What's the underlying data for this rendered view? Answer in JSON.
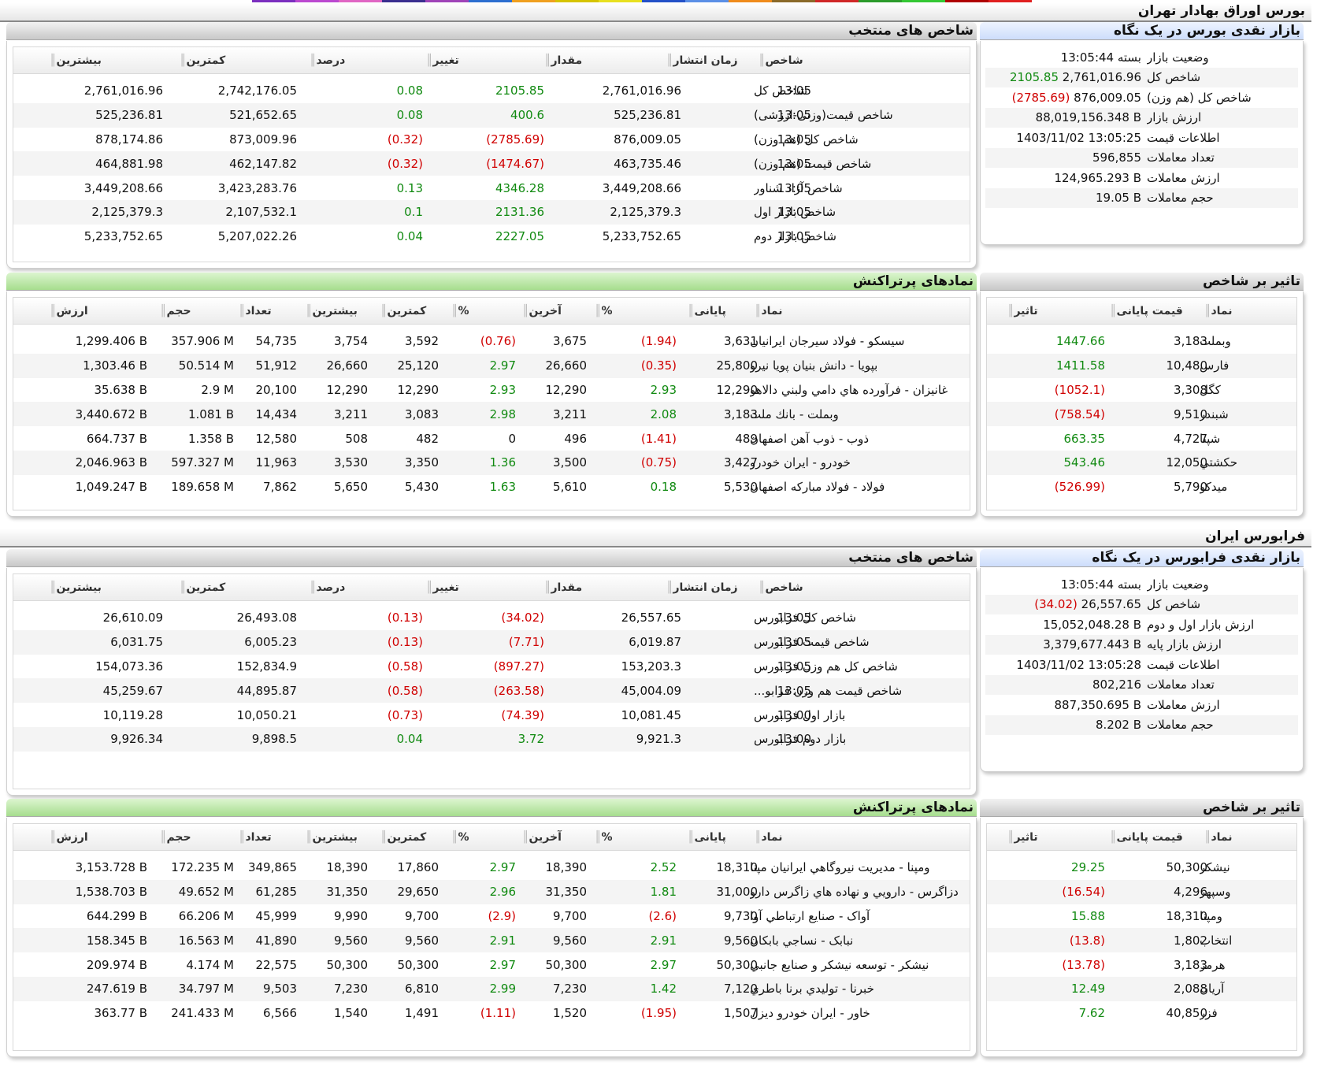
{
  "tehran": {
    "section_title": "بورس اوراق بهادار تهران",
    "glance": {
      "title": "بازار نقدی بورس در یک نگاه",
      "rows": [
        {
          "label": "وضعیت بازار",
          "value": "بسته 13:05:44",
          "change": ""
        },
        {
          "label": "شاخص کل",
          "value": "2,761,016.96",
          "change": "2105.85",
          "dir": "pos"
        },
        {
          "label": "شاخص کل (هم وزن)",
          "value": "876,009.05",
          "change": "(2785.69)",
          "dir": "neg"
        },
        {
          "label": "ارزش بازار",
          "value": "88,019,156.348 B",
          "change": ""
        },
        {
          "label": "اطلاعات قیمت",
          "value": "1403/11/02 13:05:25",
          "change": ""
        },
        {
          "label": "تعداد معاملات",
          "value": "596,855",
          "change": ""
        },
        {
          "label": "ارزش معاملات",
          "value": "124,965.293 B",
          "change": ""
        },
        {
          "label": "حجم معاملات",
          "value": "19.05 B",
          "change": ""
        }
      ]
    },
    "indices": {
      "title": "شاخص های منتخب",
      "headers": [
        "شاخص",
        "زمان انتشار",
        "مقدار",
        "تغییر",
        "درصد",
        "کمترین",
        "بیشترین"
      ],
      "rows": [
        {
          "cells": [
            "شاخص کل",
            "13:05",
            "2,761,016.96",
            "2105.85",
            "0.08",
            "2,742,176.05",
            "2,761,016.96"
          ],
          "dir": "pos"
        },
        {
          "cells": [
            "شاخص قیمت(وزنی-ارزشی)",
            "13:05",
            "525,236.81",
            "400.6",
            "0.08",
            "521,652.65",
            "525,236.81"
          ],
          "dir": "pos"
        },
        {
          "cells": [
            "شاخص کل (هم وزن)",
            "13:05",
            "876,009.05",
            "(2785.69)",
            "(0.32)",
            "873,009.96",
            "878,174.86"
          ],
          "dir": "neg"
        },
        {
          "cells": [
            "شاخص قیمت (هم وزن)",
            "13:05",
            "463,735.46",
            "(1474.67)",
            "(0.32)",
            "462,147.82",
            "464,881.98"
          ],
          "dir": "neg"
        },
        {
          "cells": [
            "شاخص آزاد شناور",
            "13:05",
            "3,449,208.66",
            "4346.28",
            "0.13",
            "3,423,283.76",
            "3,449,208.66"
          ],
          "dir": "pos"
        },
        {
          "cells": [
            "شاخص بازار اول",
            "13:05",
            "2,125,379.3",
            "2131.36",
            "0.1",
            "2,107,532.1",
            "2,125,379.3"
          ],
          "dir": "pos"
        },
        {
          "cells": [
            "شاخص بازار دوم",
            "13:05",
            "5,233,752.65",
            "2227.05",
            "0.04",
            "5,207,022.26",
            "5,233,752.65"
          ],
          "dir": "pos"
        }
      ]
    },
    "impact": {
      "title": "تاثیر بر شاخص",
      "headers": [
        "نماد",
        "قیمت پایانی",
        "تاثیر"
      ],
      "rows": [
        {
          "cells": [
            "وبملت",
            "3,183",
            "1447.66"
          ],
          "dir": "pos"
        },
        {
          "cells": [
            "فارس",
            "10,480",
            "1411.58"
          ],
          "dir": "pos"
        },
        {
          "cells": [
            "کگل",
            "3,308",
            "(1052.1)"
          ],
          "dir": "neg"
        },
        {
          "cells": [
            "شبندر",
            "9,510",
            "(758.54)"
          ],
          "dir": "neg"
        },
        {
          "cells": [
            "شپنا",
            "4,727",
            "663.35"
          ],
          "dir": "pos"
        },
        {
          "cells": [
            "حکشتي",
            "12,050",
            "543.46"
          ],
          "dir": "pos"
        },
        {
          "cells": [
            "میدکو",
            "5,790",
            "(526.99)"
          ],
          "dir": "neg"
        }
      ]
    },
    "traded": {
      "title": "نمادهای پرتراکنش",
      "headers": [
        "نماد",
        "پایانی",
        "%",
        "آخرین",
        "%",
        "کمترین",
        "بیشترین",
        "تعداد",
        "حجم",
        "ارزش"
      ],
      "rows": [
        {
          "cells": [
            "سیسکو - فولاد سیرجان ایرانیان",
            "3,631",
            "(1.94)",
            "3,675",
            "(0.76)",
            "3,592",
            "3,754",
            "54,735",
            "357.906 M",
            "1,299.406 B"
          ],
          "d1": "neg",
          "d2": "neg"
        },
        {
          "cells": [
            "بپویا - دانش بنیان پویا نیرو",
            "25,800",
            "(0.35)",
            "26,660",
            "2.97",
            "25,120",
            "26,660",
            "51,912",
            "50.514 M",
            "1,303.46 B"
          ],
          "d1": "neg",
          "d2": "pos"
        },
        {
          "cells": [
            "غانیزان - فرآورده هاي دامي ولبني دالاهو",
            "12,290",
            "2.93",
            "12,290",
            "2.93",
            "12,290",
            "12,290",
            "20,100",
            "2.9 M",
            "35.638 B"
          ],
          "d1": "pos",
          "d2": "pos"
        },
        {
          "cells": [
            "وبملت - بانك ملت",
            "3,183",
            "2.08",
            "3,211",
            "2.98",
            "3,083",
            "3,211",
            "14,434",
            "1.081 B",
            "3,440.672 B"
          ],
          "d1": "pos",
          "d2": "pos"
        },
        {
          "cells": [
            "ذوب - ذوب آهن اصفهان",
            "489",
            "(1.41)",
            "496",
            "0",
            "482",
            "508",
            "12,580",
            "1.358 B",
            "664.737 B"
          ],
          "d1": "neg",
          "d2": "zero"
        },
        {
          "cells": [
            "خودرو - ايران خودرو",
            "3,427",
            "(0.75)",
            "3,500",
            "1.36",
            "3,350",
            "3,530",
            "11,963",
            "597.327 M",
            "2,046.963 B"
          ],
          "d1": "neg",
          "d2": "pos"
        },
        {
          "cells": [
            "فولاد - فولاد مباركه اصفهان",
            "5,530",
            "0.18",
            "5,610",
            "1.63",
            "5,430",
            "5,650",
            "7,862",
            "189.658 M",
            "1,049.247 B"
          ],
          "d1": "pos",
          "d2": "pos"
        }
      ]
    }
  },
  "farabourse": {
    "section_title": "فرابورس ایران",
    "glance": {
      "title": "بازار نقدی فرابورس در یک نگاه",
      "rows": [
        {
          "label": "وضعیت بازار",
          "value": "بسته 13:05:44",
          "change": ""
        },
        {
          "label": "شاخص کل",
          "value": "26,557.65",
          "change": "(34.02)",
          "dir": "neg"
        },
        {
          "label": "ارزش بازار اول و دوم",
          "value": "15,052,048.28 B",
          "change": ""
        },
        {
          "label": "ارزش بازار پایه",
          "value": "3,379,677.443 B",
          "change": ""
        },
        {
          "label": "اطلاعات قیمت",
          "value": "1403/11/02 13:05:28",
          "change": ""
        },
        {
          "label": "تعداد معاملات",
          "value": "802,216",
          "change": ""
        },
        {
          "label": "ارزش معاملات",
          "value": "887,350.695 B",
          "change": ""
        },
        {
          "label": "حجم معاملات",
          "value": "8.202 B",
          "change": ""
        }
      ]
    },
    "indices": {
      "title": "شاخص های منتخب",
      "headers": [
        "شاخص",
        "زمان انتشار",
        "مقدار",
        "تغییر",
        "درصد",
        "کمترین",
        "بیشترین"
      ],
      "rows": [
        {
          "cells": [
            "شاخص کل فرابورس",
            "13:05",
            "26,557.65",
            "(34.02)",
            "(0.13)",
            "26,493.08",
            "26,610.09"
          ],
          "dir": "neg"
        },
        {
          "cells": [
            "شاخص قیمت فرابورس",
            "13:05",
            "6,019.87",
            "(7.71)",
            "(0.13)",
            "6,005.23",
            "6,031.75"
          ],
          "dir": "neg"
        },
        {
          "cells": [
            "شاخص کل هم وزن فرابورس",
            "13:05",
            "153,203.3",
            "(897.27)",
            "(0.58)",
            "152,834.9",
            "154,073.36"
          ],
          "dir": "neg"
        },
        {
          "cells": [
            "شاخص قیمت هم وزن فرابو...",
            "13:05",
            "45,004.09",
            "(263.58)",
            "(0.58)",
            "44,895.87",
            "45,259.67"
          ],
          "dir": "neg"
        },
        {
          "cells": [
            "بازار اول فرابورس",
            "13:00",
            "10,081.45",
            "(74.39)",
            "(0.73)",
            "10,050.21",
            "10,119.28"
          ],
          "dir": "neg"
        },
        {
          "cells": [
            "بازار دوم فرابورس",
            "13:00",
            "9,921.3",
            "3.72",
            "0.04",
            "9,898.5",
            "9,926.34"
          ],
          "dir": "pos"
        }
      ]
    },
    "impact": {
      "title": "تاثیر بر شاخص",
      "headers": [
        "نماد",
        "قیمت پایانی",
        "تاثیر"
      ],
      "rows": [
        {
          "cells": [
            "نیشکر",
            "50,300",
            "29.25"
          ],
          "dir": "pos"
        },
        {
          "cells": [
            "وسپهر",
            "4,296",
            "(16.54)"
          ],
          "dir": "neg"
        },
        {
          "cells": [
            "ومپنا",
            "18,310",
            "15.88"
          ],
          "dir": "pos"
        },
        {
          "cells": [
            "انتخاب",
            "1,802",
            "(13.8)"
          ],
          "dir": "neg"
        },
        {
          "cells": [
            "هرمز",
            "3,183",
            "(13.78)"
          ],
          "dir": "neg"
        },
        {
          "cells": [
            "آریان",
            "2,088",
            "12.49"
          ],
          "dir": "pos"
        },
        {
          "cells": [
            "فزر",
            "40,850",
            "7.62"
          ],
          "dir": "pos"
        }
      ]
    },
    "traded": {
      "title": "نمادهای پرتراکنش",
      "headers": [
        "نماد",
        "پایانی",
        "%",
        "آخرین",
        "%",
        "کمترین",
        "بیشترین",
        "تعداد",
        "حجم",
        "ارزش"
      ],
      "rows": [
        {
          "cells": [
            "ومپنا - مديريت نيروگاهي ايرانيان مپنا",
            "18,310",
            "2.52",
            "18,390",
            "2.97",
            "17,860",
            "18,390",
            "349,865",
            "172.235 M",
            "3,153.728 B"
          ],
          "d1": "pos",
          "d2": "pos"
        },
        {
          "cells": [
            "دزاگرس - دارويي و نهاده هاي زاگرس دارو",
            "31,000",
            "1.81",
            "31,350",
            "2.96",
            "29,650",
            "31,350",
            "61,285",
            "49.652 M",
            "1,538.703 B"
          ],
          "d1": "pos",
          "d2": "pos"
        },
        {
          "cells": [
            "آواک - صنايع ارتباطي آوا",
            "9,730",
            "(2.6)",
            "9,700",
            "(2.9)",
            "9,700",
            "9,990",
            "45,999",
            "66.206 M",
            "644.299 B"
          ],
          "d1": "neg",
          "d2": "neg"
        },
        {
          "cells": [
            "نبابک - نساجي بابكان",
            "9,560",
            "2.91",
            "9,560",
            "2.91",
            "9,560",
            "9,560",
            "41,890",
            "16.563 M",
            "158.345 B"
          ],
          "d1": "pos",
          "d2": "pos"
        },
        {
          "cells": [
            "نیشکر - توسعه نيشكر و صنايع جانبي",
            "50,300",
            "2.97",
            "50,300",
            "2.97",
            "50,300",
            "50,300",
            "22,575",
            "4.174 M",
            "209.974 B"
          ],
          "d1": "pos",
          "d2": "pos"
        },
        {
          "cells": [
            "خبرنا - توليدي برنا باطري",
            "7,120",
            "1.42",
            "7,230",
            "2.99",
            "6,810",
            "7,230",
            "9,503",
            "34.797 M",
            "247.619 B"
          ],
          "d1": "pos",
          "d2": "pos"
        },
        {
          "cells": [
            "خاور - ايران خودرو ديزل",
            "1,507",
            "(1.95)",
            "1,520",
            "(1.11)",
            "1,491",
            "1,540",
            "6,566",
            "241.433 M",
            "363.77 B"
          ],
          "d1": "neg",
          "d2": "neg"
        }
      ]
    }
  },
  "colors": {
    "positive": "#118a11",
    "negative": "#d00000",
    "top_strip": [
      "#7b2fbf",
      "#bb49d0",
      "#e066c4",
      "#3b2f8f",
      "#a044b8",
      "#2d6fd0",
      "#f0a020",
      "#d6c400",
      "#e8e020",
      "#2451c8",
      "#5b8fe6",
      "#f08c1c",
      "#8b6a2a",
      "#d02828",
      "#2c9c2c",
      "#34c834",
      "#b00000",
      "#e02020"
    ]
  }
}
